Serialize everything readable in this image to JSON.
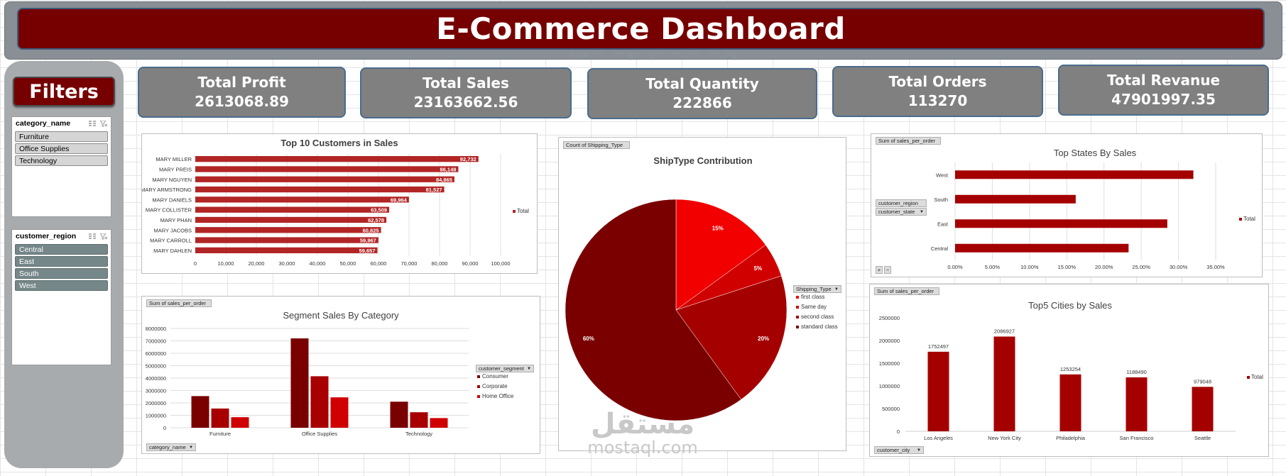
{
  "header": {
    "title": "E-Commerce Dashboard"
  },
  "filters": {
    "title": "Filters",
    "category_slicer": {
      "header": "category_name",
      "items": [
        "Furniture",
        "Office Supplies",
        "Technology"
      ]
    },
    "region_slicer": {
      "header": "customer_region",
      "items": [
        "Central",
        "East",
        "South",
        "West"
      ]
    }
  },
  "kpis": [
    {
      "label": "Total Profit",
      "value": "2613068.89"
    },
    {
      "label": "Total Sales",
      "value": "23163662.56"
    },
    {
      "label": "Total Quantity",
      "value": "222866"
    },
    {
      "label": "Total Orders",
      "value": "113270"
    },
    {
      "label": "Total Revanue",
      "value": "47901997.35"
    }
  ],
  "field_buttons": {
    "shipping_count": "Count of Shipping_Type",
    "sales_per_order": "Sum of sales_per_order",
    "category_name": "category_name",
    "customer_segment": "customer_segment",
    "shipping_type": "Shipping_Type",
    "customer_region": "customer_region",
    "customer_state": "customer_state",
    "customer_city": "customer_city",
    "expand": "+",
    "collapse": "−"
  },
  "watermark": {
    "arabic": "مستقل",
    "latin": "mostaql.com"
  },
  "colors": {
    "title_bg": "#760000",
    "bar_dark_red": "#B22525",
    "segment_consumer": "#7A0000",
    "segment_corporate": "#A80000",
    "segment_home_office": "#D00000",
    "pie_first_class": "#F20000",
    "pie_same_day": "#D10000",
    "pie_second_class": "#A50000",
    "pie_standard_class": "#7A0000"
  },
  "chart_data": [
    {
      "type": "bar",
      "orientation": "horizontal",
      "title": "Top 10 Customers in Sales",
      "categories": [
        "MARY MILLER",
        "MARY PREIS",
        "MARY NGUYEN",
        "MARY ARMSTRONG",
        "MARY DANIELS",
        "MARY COLLISTER",
        "MARY PHAN",
        "MARY JACOBS",
        "MARY CARROLL",
        "MARY DAHLEN"
      ],
      "values": [
        92732,
        86148,
        84865,
        81527,
        69964,
        63509,
        62578,
        60825,
        59967,
        59657
      ],
      "data_labels": [
        "92,732",
        "86,148",
        "84,865",
        "81,527",
        "69,964",
        "63,509",
        "62,578",
        "60,825",
        "59,967",
        "59,657"
      ],
      "x_ticks": [
        "0",
        "10,000",
        "20,000",
        "30,000",
        "40,000",
        "50,000",
        "60,000",
        "70,000",
        "80,000",
        "90,000",
        "100,000"
      ],
      "xlim": [
        0,
        100000
      ],
      "legend": [
        "Total"
      ],
      "legend_position": "right"
    },
    {
      "type": "pie",
      "title": "ShipType Contribution",
      "labels": [
        "first class",
        "Same day",
        "second class",
        "standard class"
      ],
      "values": [
        15,
        5,
        20,
        60
      ],
      "data_labels": [
        "15%",
        "5%",
        "20%",
        "60%"
      ],
      "legend_position": "right"
    },
    {
      "type": "bar",
      "orientation": "horizontal",
      "title": "Top States By Sales",
      "categories": [
        "West",
        "South",
        "East",
        "Central"
      ],
      "values": [
        32.0,
        16.2,
        28.5,
        23.3
      ],
      "x_ticks": [
        "0.00%",
        "5.00%",
        "10.00%",
        "15.00%",
        "20.00%",
        "25.00%",
        "30.00%",
        "35.00%"
      ],
      "xlim": [
        0,
        35
      ],
      "legend": [
        "Total"
      ],
      "legend_position": "right"
    },
    {
      "type": "bar",
      "title": "Segment Sales By Category",
      "categories": [
        "Furniture",
        "Office Supplies",
        "Technology"
      ],
      "series": [
        {
          "name": "Consumer",
          "values": [
            2550000,
            7200000,
            2100000
          ]
        },
        {
          "name": "Corporate",
          "values": [
            1550000,
            4150000,
            1250000
          ]
        },
        {
          "name": "Home Office",
          "values": [
            850000,
            2450000,
            780000
          ]
        }
      ],
      "y_ticks": [
        "0",
        "1000000",
        "2000000",
        "3000000",
        "4000000",
        "5000000",
        "6000000",
        "7000000",
        "8000000"
      ],
      "ylim": [
        0,
        8000000
      ],
      "grid": true,
      "legend_position": "right"
    },
    {
      "type": "bar",
      "title": "Top5 Cities by Sales",
      "categories": [
        "Los Angeles",
        "New York City",
        "Philadelphia",
        "San Francisco",
        "Seattle"
      ],
      "values": [
        1752497,
        2086927,
        1253254,
        1188490,
        979048
      ],
      "data_labels": [
        "1752497",
        "2086927",
        "1253254",
        "1188490",
        "979048"
      ],
      "y_ticks": [
        "0",
        "500000",
        "1000000",
        "1500000",
        "2000000",
        "2500000"
      ],
      "ylim": [
        0,
        2500000
      ],
      "legend": [
        "Total"
      ],
      "legend_position": "right"
    }
  ]
}
